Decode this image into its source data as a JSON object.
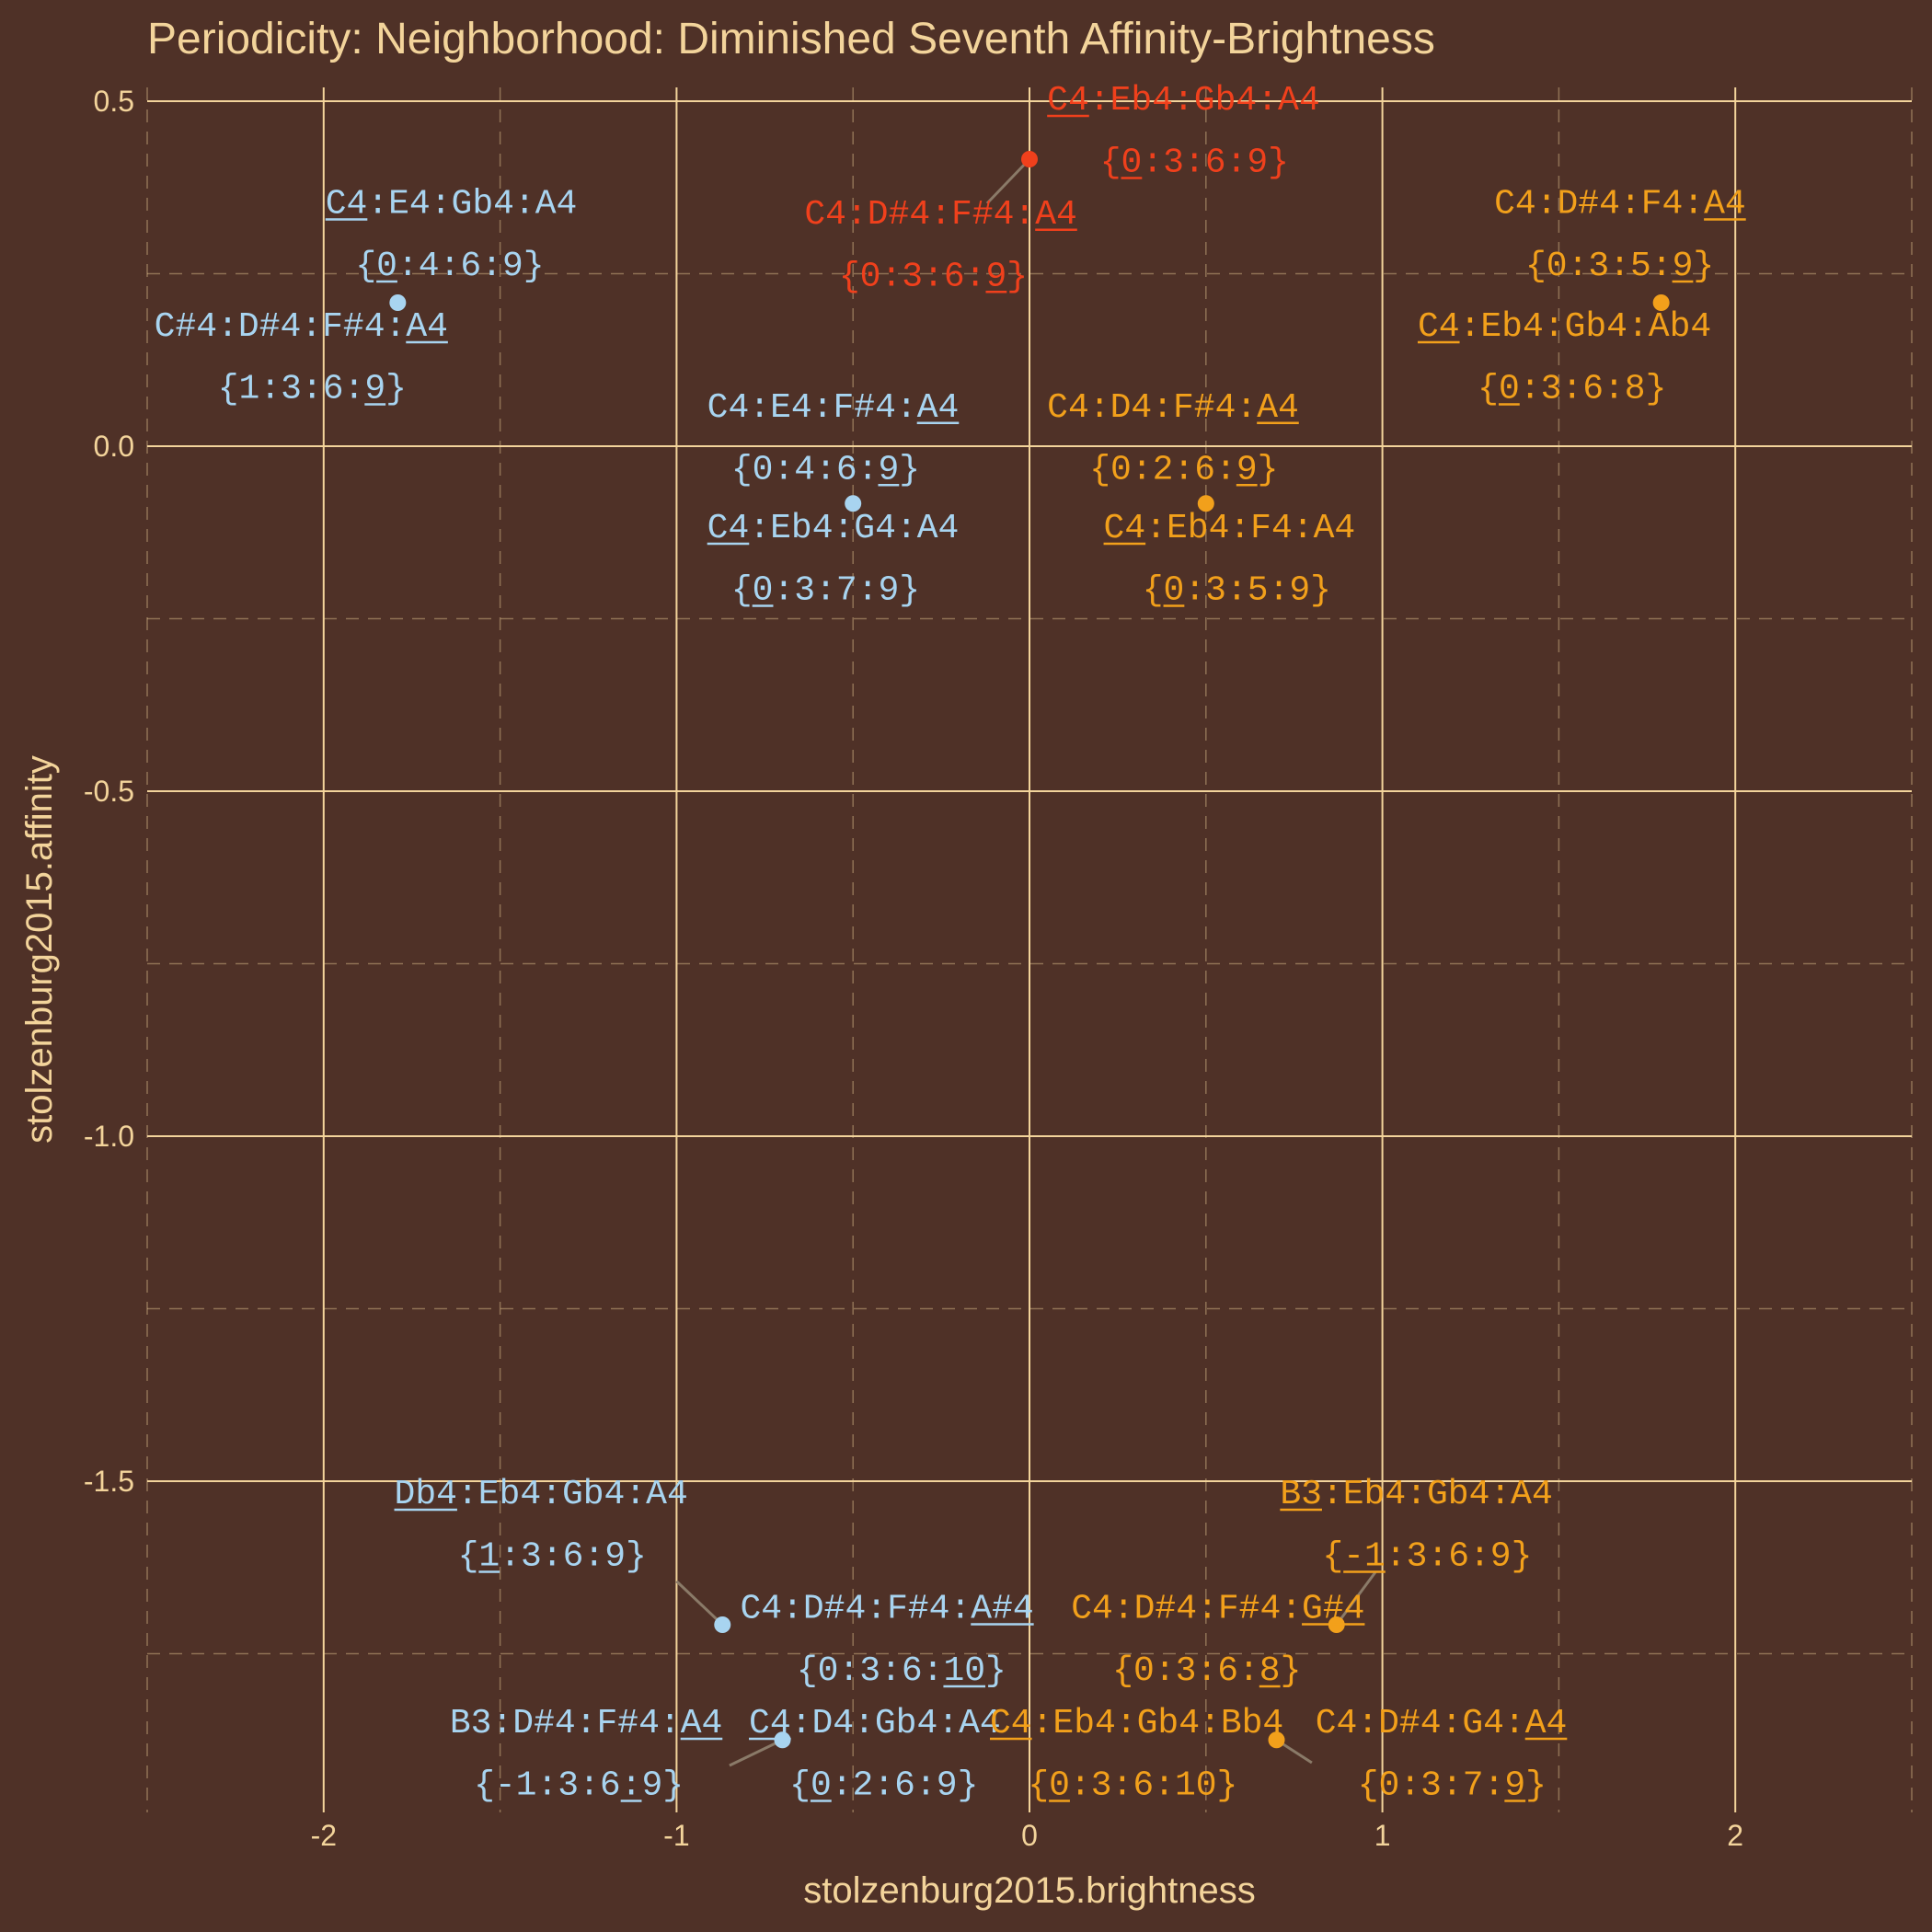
{
  "chart_data": {
    "type": "scatter",
    "title": "Periodicity: Neighborhood: Diminished Seventh Affinity-Brightness",
    "xlabel": "stolzenburg2015.brightness",
    "ylabel": "stolzenburg2015.affinity",
    "xlim": [
      -2.5,
      2.5
    ],
    "ylim": [
      -1.98,
      0.52
    ],
    "xticks": [
      -2,
      -1,
      0,
      1,
      2
    ],
    "yticks": [
      0.5,
      0.0,
      -0.5,
      -1.0,
      -1.5
    ],
    "xtick_labels": [
      "-2",
      "-1",
      "0",
      "1",
      "2"
    ],
    "ytick_labels": [
      "0.5",
      "0.0",
      "-0.5",
      "-1.0",
      "-1.5"
    ],
    "grid": true,
    "legend": "none",
    "colors": {
      "background": "#4f3127",
      "text": "#f3d49b",
      "grid": "#f3d49b",
      "red": "#f0401c",
      "orange": "#f2a01b",
      "blue": "#a8d4f0",
      "connector": "#8a7a68"
    },
    "points": [
      {
        "x": 0.0,
        "y": 0.416,
        "color": "red"
      },
      {
        "x": -1.79,
        "y": 0.208,
        "color": "blue"
      },
      {
        "x": 1.79,
        "y": 0.208,
        "color": "orange"
      },
      {
        "x": -0.5,
        "y": -0.083,
        "color": "blue"
      },
      {
        "x": 0.5,
        "y": -0.083,
        "color": "orange"
      },
      {
        "x": -0.87,
        "y": -1.708,
        "color": "blue"
      },
      {
        "x": 0.87,
        "y": -1.708,
        "color": "orange"
      },
      {
        "x": -0.7,
        "y": -1.875,
        "color": "blue"
      },
      {
        "x": 0.7,
        "y": -1.875,
        "color": "orange"
      }
    ],
    "labels": [
      {
        "text": "C4:Eb4:Gb4:A4",
        "x": 0.05,
        "y": 0.488,
        "anchor": "start",
        "color": "red",
        "underline": [
          [
            0,
            2
          ]
        ]
      },
      {
        "text": "{0:3:6:9}",
        "x": 0.2,
        "y": 0.398,
        "anchor": "start",
        "color": "red",
        "underline": [
          [
            1,
            2
          ]
        ]
      },
      {
        "text": "C4:D#4:F#4:A4",
        "x": 0.135,
        "y": 0.323,
        "anchor": "end",
        "color": "red",
        "underline": [
          [
            11,
            13
          ]
        ]
      },
      {
        "text": "{0:3:6:9}",
        "x": -0.005,
        "y": 0.233,
        "anchor": "end",
        "color": "red",
        "underline": [
          [
            7,
            8
          ]
        ]
      },
      {
        "text": "C4:E4:Gb4:A4",
        "x": -1.995,
        "y": 0.338,
        "anchor": "start",
        "color": "blue",
        "underline": [
          [
            0,
            2
          ]
        ]
      },
      {
        "text": "{0:4:6:9}",
        "x": -1.91,
        "y": 0.248,
        "anchor": "start",
        "color": "blue",
        "underline": [
          [
            1,
            2
          ]
        ]
      },
      {
        "text": "C#4:D#4:F#4:A4",
        "x": -2.48,
        "y": 0.16,
        "anchor": "start",
        "color": "blue",
        "underline": [
          [
            12,
            14
          ]
        ]
      },
      {
        "text": "{1:3:6:9}",
        "x": -2.3,
        "y": 0.07,
        "anchor": "start",
        "color": "blue",
        "underline": [
          [
            7,
            8
          ]
        ]
      },
      {
        "text": "C4:D#4:F4:A4",
        "x": 2.03,
        "y": 0.338,
        "anchor": "end",
        "color": "orange",
        "underline": [
          [
            10,
            12
          ]
        ]
      },
      {
        "text": "{0:3:5:9}",
        "x": 1.94,
        "y": 0.248,
        "anchor": "end",
        "color": "orange",
        "underline": [
          [
            7,
            8
          ]
        ]
      },
      {
        "text": "C4:Eb4:Gb4:Ab4",
        "x": 1.1,
        "y": 0.16,
        "anchor": "start",
        "color": "orange",
        "underline": [
          [
            0,
            2
          ]
        ]
      },
      {
        "text": "{0:3:6:8}",
        "x": 1.27,
        "y": 0.07,
        "anchor": "start",
        "color": "orange",
        "underline": [
          [
            1,
            2
          ]
        ]
      },
      {
        "text": "C4:E4:F#4:A4",
        "x": -0.2,
        "y": 0.043,
        "anchor": "end",
        "color": "blue",
        "underline": [
          [
            10,
            12
          ]
        ]
      },
      {
        "text": "{0:4:6:9}",
        "x": -0.31,
        "y": -0.047,
        "anchor": "end",
        "color": "blue",
        "underline": [
          [
            7,
            8
          ]
        ]
      },
      {
        "text": "C4:Eb4:G4:A4",
        "x": -0.2,
        "y": -0.132,
        "anchor": "end",
        "color": "blue",
        "underline": [
          [
            0,
            2
          ]
        ]
      },
      {
        "text": "{0:3:7:9}",
        "x": -0.31,
        "y": -0.222,
        "anchor": "end",
        "color": "blue",
        "underline": [
          [
            1,
            2
          ]
        ]
      },
      {
        "text": "C4:D4:F#4:A4",
        "x": 0.05,
        "y": 0.043,
        "anchor": "start",
        "color": "orange",
        "underline": [
          [
            10,
            12
          ]
        ]
      },
      {
        "text": "{0:2:6:9}",
        "x": 0.17,
        "y": -0.047,
        "anchor": "start",
        "color": "orange",
        "underline": [
          [
            7,
            8
          ]
        ]
      },
      {
        "text": "C4:Eb4:F4:A4",
        "x": 0.21,
        "y": -0.132,
        "anchor": "start",
        "color": "orange",
        "underline": [
          [
            0,
            2
          ]
        ]
      },
      {
        "text": "{0:3:5:9}",
        "x": 0.32,
        "y": -0.222,
        "anchor": "start",
        "color": "orange",
        "underline": [
          [
            1,
            2
          ]
        ]
      },
      {
        "text": "Db4:Eb4:Gb4:A4",
        "x": -1.8,
        "y": -1.532,
        "anchor": "start",
        "color": "blue",
        "underline": [
          [
            0,
            3
          ]
        ]
      },
      {
        "text": "{1:3:6:9}",
        "x": -1.62,
        "y": -1.622,
        "anchor": "start",
        "color": "blue",
        "underline": [
          [
            1,
            2
          ]
        ]
      },
      {
        "text": "C4:D#4:F#4:A#4",
        "x": -0.82,
        "y": -1.698,
        "anchor": "start",
        "color": "blue",
        "underline": [
          [
            11,
            14
          ]
        ]
      },
      {
        "text": "{0:3:6:10}",
        "x": -0.66,
        "y": -1.788,
        "anchor": "start",
        "color": "blue",
        "underline": [
          [
            7,
            9
          ]
        ]
      },
      {
        "text": "B3:D#4:F#4:A4",
        "x": -0.87,
        "y": -1.864,
        "anchor": "end",
        "color": "blue",
        "underline": [
          [
            11,
            13
          ]
        ]
      },
      {
        "text": "{-1:3:6:9}",
        "x": -0.98,
        "y": -1.954,
        "anchor": "end",
        "color": "blue",
        "underline": [
          [
            7,
            8
          ]
        ]
      },
      {
        "text": "C4:D4:Gb4:A4",
        "x": -0.795,
        "y": -1.864,
        "anchor": "start",
        "color": "blue",
        "underline": [
          [
            0,
            2
          ]
        ]
      },
      {
        "text": "{0:2:6:9}",
        "x": -0.68,
        "y": -1.954,
        "anchor": "start",
        "color": "blue",
        "underline": [
          [
            1,
            2
          ]
        ]
      },
      {
        "text": "B3:Eb4:Gb4:A4",
        "x": 0.71,
        "y": -1.532,
        "anchor": "start",
        "color": "orange",
        "underline": [
          [
            0,
            2
          ]
        ]
      },
      {
        "text": "{-1:3:6:9}",
        "x": 0.83,
        "y": -1.622,
        "anchor": "start",
        "color": "orange",
        "underline": [
          [
            1,
            3
          ]
        ]
      },
      {
        "text": "C4:D#4:F#4:G#4",
        "x": 0.95,
        "y": -1.698,
        "anchor": "end",
        "color": "orange",
        "underline": [
          [
            11,
            14
          ]
        ]
      },
      {
        "text": "{0:3:6:8}",
        "x": 0.77,
        "y": -1.788,
        "anchor": "end",
        "color": "orange",
        "underline": [
          [
            7,
            8
          ]
        ]
      },
      {
        "text": "C4:Eb4:Gb4:Bb4",
        "x": 0.72,
        "y": -1.864,
        "anchor": "end",
        "color": "orange",
        "underline": [
          [
            0,
            2
          ]
        ]
      },
      {
        "text": "{0:3:6:10}",
        "x": 0.59,
        "y": -1.954,
        "anchor": "end",
        "color": "orange",
        "underline": [
          [
            1,
            2
          ]
        ]
      },
      {
        "text": "C4:D#4:G4:A4",
        "x": 0.81,
        "y": -1.864,
        "anchor": "start",
        "color": "orange",
        "underline": [
          [
            10,
            12
          ]
        ]
      },
      {
        "text": "{0:3:7:9}",
        "x": 0.93,
        "y": -1.954,
        "anchor": "start",
        "color": "orange",
        "underline": [
          [
            7,
            8
          ]
        ]
      }
    ],
    "connectors": [
      {
        "x1": 0.0,
        "y1": 0.416,
        "x2": -0.12,
        "y2": 0.352
      },
      {
        "x1": -0.87,
        "y1": -1.708,
        "x2": -1.0,
        "y2": -1.645
      },
      {
        "x1": 0.87,
        "y1": -1.708,
        "x2": 0.98,
        "y2": -1.632
      },
      {
        "x1": -0.7,
        "y1": -1.875,
        "x2": -0.85,
        "y2": -1.912
      },
      {
        "x1": 0.7,
        "y1": -1.875,
        "x2": 0.8,
        "y2": -1.908
      }
    ]
  }
}
